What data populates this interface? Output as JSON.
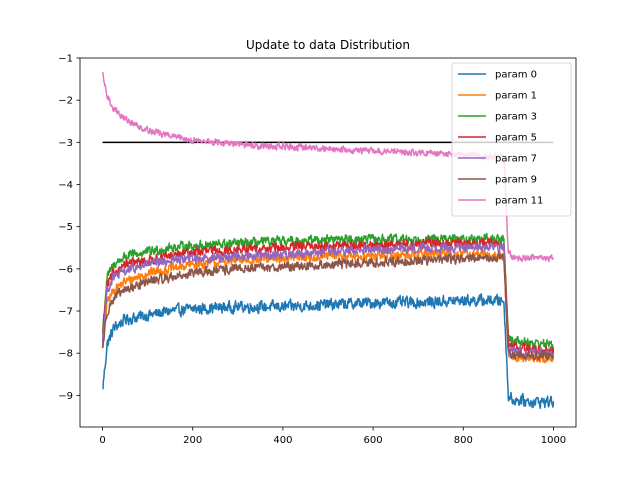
{
  "chart_data": {
    "type": "line",
    "title": "Update to data Distribution",
    "xlabel": "",
    "ylabel": "",
    "xlim": [
      -50,
      1050
    ],
    "ylim": [
      -9.75,
      -1
    ],
    "x_ticks": [
      0,
      200,
      400,
      600,
      800,
      1000
    ],
    "y_ticks": [
      -9,
      -8,
      -7,
      -6,
      -5,
      -4,
      -3,
      -2,
      -1
    ],
    "x_tick_labels": [
      "0",
      "200",
      "400",
      "600",
      "800",
      "1000"
    ],
    "y_tick_labels": [
      "−9",
      "−8",
      "−7",
      "−6",
      "−5",
      "−4",
      "−3",
      "−2",
      "−1"
    ],
    "grid": false,
    "legend_position": "top-right",
    "reference_line": {
      "x": [
        0,
        1000
      ],
      "y": [
        -3,
        -3
      ],
      "color": "#000000"
    },
    "series": [
      {
        "name": "param 0",
        "color": "#1f77b4",
        "x": [
          0,
          10,
          25,
          50,
          100,
          150,
          200,
          300,
          400,
          500,
          600,
          700,
          800,
          890,
          900,
          910,
          950,
          1000
        ],
        "y": [
          -8.9,
          -7.8,
          -7.4,
          -7.2,
          -7.1,
          -7.0,
          -6.95,
          -6.9,
          -6.9,
          -6.85,
          -6.8,
          -6.8,
          -6.75,
          -6.75,
          -9.0,
          -9.1,
          -9.15,
          -9.15
        ],
        "noise": 0.12
      },
      {
        "name": "param 1",
        "color": "#ff7f0e",
        "x": [
          0,
          10,
          25,
          50,
          100,
          150,
          200,
          300,
          400,
          500,
          600,
          700,
          800,
          890,
          900,
          910,
          950,
          1000
        ],
        "y": [
          -7.8,
          -6.8,
          -6.5,
          -6.3,
          -6.1,
          -6.0,
          -5.9,
          -5.8,
          -5.75,
          -5.7,
          -5.7,
          -5.65,
          -5.65,
          -5.7,
          -8.0,
          -8.1,
          -8.1,
          -8.15
        ],
        "noise": 0.1
      },
      {
        "name": "param 3",
        "color": "#2ca02c",
        "x": [
          0,
          10,
          25,
          50,
          100,
          150,
          200,
          300,
          400,
          500,
          600,
          700,
          800,
          890,
          900,
          910,
          950,
          1000
        ],
        "y": [
          -7.5,
          -6.2,
          -5.9,
          -5.7,
          -5.6,
          -5.5,
          -5.45,
          -5.4,
          -5.35,
          -5.3,
          -5.3,
          -5.3,
          -5.3,
          -5.3,
          -7.6,
          -7.7,
          -7.75,
          -7.8
        ],
        "noise": 0.1
      },
      {
        "name": "param 5",
        "color": "#d62728",
        "x": [
          0,
          10,
          25,
          50,
          100,
          150,
          200,
          300,
          400,
          500,
          600,
          700,
          800,
          890,
          900,
          910,
          950,
          1000
        ],
        "y": [
          -7.6,
          -6.4,
          -6.1,
          -5.9,
          -5.8,
          -5.7,
          -5.6,
          -5.55,
          -5.5,
          -5.45,
          -5.45,
          -5.4,
          -5.4,
          -5.4,
          -7.8,
          -7.85,
          -7.9,
          -7.95
        ],
        "noise": 0.1
      },
      {
        "name": "param 7",
        "color": "#9467bd",
        "x": [
          0,
          10,
          25,
          50,
          100,
          150,
          200,
          300,
          400,
          500,
          600,
          700,
          800,
          890,
          900,
          910,
          950,
          1000
        ],
        "y": [
          -7.7,
          -6.5,
          -6.2,
          -6.05,
          -5.9,
          -5.8,
          -5.75,
          -5.7,
          -5.65,
          -5.6,
          -5.55,
          -5.5,
          -5.5,
          -5.5,
          -7.9,
          -7.95,
          -8.0,
          -8.0
        ],
        "noise": 0.1
      },
      {
        "name": "param 9",
        "color": "#8c564b",
        "x": [
          0,
          10,
          25,
          50,
          100,
          150,
          200,
          300,
          400,
          500,
          600,
          700,
          800,
          890,
          900,
          910,
          950,
          1000
        ],
        "y": [
          -7.9,
          -7.0,
          -6.7,
          -6.5,
          -6.3,
          -6.2,
          -6.1,
          -6.0,
          -5.95,
          -5.9,
          -5.85,
          -5.8,
          -5.75,
          -5.75,
          -8.0,
          -8.05,
          -8.05,
          -8.05
        ],
        "noise": 0.1
      },
      {
        "name": "param 11",
        "color": "#e377c2",
        "x": [
          0,
          10,
          25,
          50,
          75,
          100,
          150,
          200,
          250,
          300,
          400,
          500,
          600,
          700,
          800,
          890,
          900,
          910,
          950,
          1000
        ],
        "y": [
          -1.4,
          -1.9,
          -2.2,
          -2.45,
          -2.6,
          -2.7,
          -2.85,
          -2.95,
          -3.0,
          -3.05,
          -3.1,
          -3.15,
          -3.2,
          -3.25,
          -3.3,
          -3.35,
          -5.6,
          -5.75,
          -5.75,
          -5.75
        ],
        "noise": 0.07
      }
    ]
  }
}
